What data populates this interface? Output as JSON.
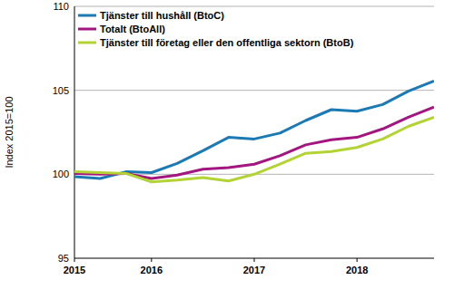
{
  "chart_data": {
    "type": "line",
    "y_label": "Index 2015=100",
    "categories": [
      "2015",
      null,
      null,
      "2016",
      null,
      null,
      null,
      "2017",
      null,
      null,
      null,
      "2018",
      null,
      null,
      null
    ],
    "series": [
      {
        "name": "Tjänster till hushåll (BtoC)",
        "color": "#1b79b4",
        "values": [
          99.85,
          99.75,
          100.15,
          100.1,
          100.65,
          101.4,
          102.2,
          102.1,
          102.45,
          103.2,
          103.85,
          103.75,
          104.15,
          104.95,
          105.55
        ]
      },
      {
        "name": "Totalt (BtoAll)",
        "color": "#a4167f",
        "values": [
          100.05,
          100.0,
          100.05,
          99.75,
          99.95,
          100.3,
          100.4,
          100.6,
          101.1,
          101.75,
          102.05,
          102.2,
          102.7,
          103.4,
          104.0
        ]
      },
      {
        "name": "Tjänster till företag eller den offentliga sektorn (BtoB)",
        "color": "#b3d335",
        "values": [
          100.15,
          100.1,
          100.05,
          99.55,
          99.65,
          99.8,
          99.6,
          100.0,
          100.6,
          101.25,
          101.35,
          101.6,
          102.1,
          102.85,
          103.4
        ]
      }
    ],
    "ylim": [
      95,
      110
    ],
    "yticks": [
      95,
      100,
      105,
      110
    ],
    "grid": true,
    "legend": "top-left"
  }
}
